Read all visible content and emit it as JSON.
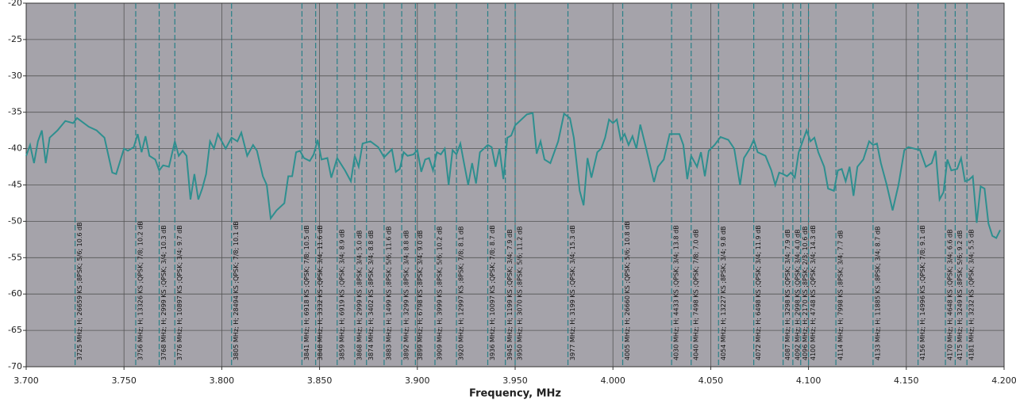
{
  "chart_data": {
    "type": "line",
    "x_label": "Frequency, MHz",
    "xlim": [
      3.7,
      4.2
    ],
    "xticks": [
      {
        "value": 3.7,
        "label": "3.700"
      },
      {
        "value": 3.75,
        "label": "3.750"
      },
      {
        "value": 3.8,
        "label": "3.800"
      },
      {
        "value": 3.85,
        "label": "3.850"
      },
      {
        "value": 3.9,
        "label": "3.900"
      },
      {
        "value": 3.95,
        "label": "3.950"
      },
      {
        "value": 4.0,
        "label": "4.000"
      },
      {
        "value": 4.05,
        "label": "4.050"
      },
      {
        "value": 4.1,
        "label": "4.100"
      },
      {
        "value": 4.15,
        "label": "4.150"
      },
      {
        "value": 4.2,
        "label": "4.200"
      }
    ],
    "ylim": [
      -70,
      -20
    ],
    "yticks": [
      -70,
      -65,
      -60,
      -55,
      -50,
      -45,
      -40,
      -35,
      -30,
      -25,
      -20
    ],
    "grid": true,
    "marker_color": "#2a8088",
    "x": [
      3.7,
      3.702,
      3.704,
      3.706,
      3.708,
      3.71,
      3.712,
      3.716,
      3.72,
      3.724,
      3.726,
      3.728,
      3.732,
      3.736,
      3.74,
      3.744,
      3.746,
      3.75,
      3.752,
      3.755,
      3.757,
      3.759,
      3.761,
      3.763,
      3.766,
      3.768,
      3.77,
      3.773,
      3.776,
      3.778,
      3.78,
      3.782,
      3.784,
      3.786,
      3.788,
      3.79,
      3.792,
      3.794,
      3.796,
      3.798,
      3.802,
      3.805,
      3.808,
      3.81,
      3.813,
      3.816,
      3.818,
      3.821,
      3.823,
      3.825,
      3.828,
      3.832,
      3.834,
      3.836,
      3.838,
      3.84,
      3.842,
      3.845,
      3.847,
      3.849,
      3.851,
      3.854,
      3.856,
      3.859,
      3.863,
      3.866,
      3.868,
      3.87,
      3.872,
      3.876,
      3.88,
      3.883,
      3.887,
      3.889,
      3.891,
      3.893,
      3.895,
      3.898,
      3.9,
      3.902,
      3.904,
      3.906,
      3.908,
      3.91,
      3.912,
      3.914,
      3.916,
      3.918,
      3.92,
      3.922,
      3.924,
      3.926,
      3.928,
      3.93,
      3.932,
      3.934,
      3.936,
      3.938,
      3.94,
      3.942,
      3.944,
      3.946,
      3.948,
      3.95,
      3.952,
      3.956,
      3.959,
      3.961,
      3.963,
      3.965,
      3.968,
      3.972,
      3.975,
      3.978,
      3.98,
      3.983,
      3.985,
      3.987,
      3.989,
      3.992,
      3.994,
      3.996,
      3.998,
      4.0,
      4.002,
      4.004,
      4.006,
      4.008,
      4.01,
      4.012,
      4.014,
      4.017,
      4.021,
      4.023,
      4.026,
      4.029,
      4.032,
      4.034,
      4.036,
      4.038,
      4.04,
      4.043,
      4.045,
      4.047,
      4.049,
      4.052,
      4.055,
      4.059,
      4.062,
      4.065,
      4.067,
      4.07,
      4.072,
      4.074,
      4.078,
      4.081,
      4.083,
      4.085,
      4.087,
      4.089,
      4.091,
      4.093,
      4.095,
      4.097,
      4.099,
      4.101,
      4.103,
      4.105,
      4.108,
      4.11,
      4.113,
      4.115,
      4.117,
      4.119,
      4.121,
      4.123,
      4.125,
      4.128,
      4.131,
      4.133,
      4.135,
      4.137,
      4.14,
      4.143,
      4.146,
      4.149,
      4.151,
      4.154,
      4.157,
      4.16,
      4.163,
      4.165,
      4.167,
      4.169,
      4.171,
      4.173,
      4.176,
      4.178,
      4.18,
      4.182,
      4.184,
      4.186,
      4.188,
      4.19,
      4.192,
      4.194,
      4.196,
      4.198
    ],
    "series": [
      {
        "color": "#2e8f8f",
        "values": [
          -41,
          -39.5,
          -42,
          -39,
          -37.5,
          -42,
          -38.5,
          -37.5,
          -36.2,
          -36.5,
          -35.8,
          -36.2,
          -37,
          -37.5,
          -38.5,
          -43.3,
          -43.5,
          -40,
          -40.3,
          -39.8,
          -38,
          -40.5,
          -38.3,
          -41,
          -41.5,
          -43,
          -42.3,
          -42.5,
          -39,
          -41,
          -40.3,
          -41,
          -47,
          -43.5,
          -47,
          -45.5,
          -43.5,
          -39,
          -40,
          -38,
          -40,
          -38.5,
          -39,
          -37.8,
          -41,
          -39.5,
          -40.3,
          -43.8,
          -45,
          -49.6,
          -48.5,
          -47.5,
          -43.8,
          -43.8,
          -40.5,
          -40.3,
          -41.3,
          -41.7,
          -40.8,
          -38.8,
          -41.5,
          -41.3,
          -44,
          -41.3,
          -43,
          -44.5,
          -41,
          -42.5,
          -39.3,
          -39,
          -39.8,
          -41.2,
          -40.1,
          -43.2,
          -42.8,
          -40.5,
          -41,
          -40.8,
          -40.2,
          -43.2,
          -41.5,
          -41.3,
          -43,
          -40.5,
          -40.8,
          -40,
          -45,
          -40.2,
          -40.8,
          -39.3,
          -42.2,
          -45,
          -42,
          -44.8,
          -40.5,
          -40,
          -39.5,
          -39.8,
          -42.5,
          -40,
          -44.2,
          -38.5,
          -38.2,
          -36.8,
          -36.3,
          -35.3,
          -35.1,
          -40.7,
          -39,
          -41.5,
          -42,
          -39,
          -35.2,
          -35.8,
          -38.5,
          -45.8,
          -47.8,
          -41.3,
          -44,
          -40.5,
          -40,
          -38.5,
          -36,
          -36.5,
          -36,
          -38.8,
          -38,
          -39.5,
          -38.3,
          -40,
          -36.7,
          -40,
          -44.6,
          -42.5,
          -41.5,
          -38,
          -38,
          -38,
          -39.5,
          -44.2,
          -41,
          -42.5,
          -40.5,
          -43.8,
          -40.3,
          -39.5,
          -38.4,
          -38.8,
          -40,
          -45,
          -41.3,
          -40,
          -38.8,
          -40.5,
          -41,
          -43,
          -45,
          -43.3,
          -43.5,
          -43.8,
          -43.3,
          -44,
          -40.5,
          -39,
          -37.5,
          -39,
          -38.5,
          -40.5,
          -42.5,
          -45.5,
          -45.8,
          -43,
          -42.8,
          -44.5,
          -42.5,
          -46.5,
          -42.5,
          -41.5,
          -39,
          -39.5,
          -39.3,
          -42,
          -45,
          -48.5,
          -45,
          -40.2,
          -39.8,
          -40,
          -40.2,
          -42.5,
          -42,
          -40.3,
          -47,
          -46,
          -41.5,
          -43,
          -42.8,
          -41.3,
          -44.5,
          -44.3,
          -43.8,
          -50.2,
          -45.2,
          -45.5,
          -50.3,
          -52,
          -52.3,
          -51.2
        ]
      }
    ],
    "markers": [
      {
        "x": 3.725,
        "label": "3725 MHz; H; 26659 KS ;8PSK; 5/6; 10.6 dB"
      },
      {
        "x": 3.756,
        "label": "3756 MHz; H; 13326 KS ;QPSK; 7/8; 10.2 dB"
      },
      {
        "x": 3.768,
        "label": "3768 MHz; H; 2999 KS ;QPSK; 3/4; 10.3 dB"
      },
      {
        "x": 3.776,
        "label": "3776 MHz; H; 10897 KS ;QPSK; 3/4; 9.7 dB"
      },
      {
        "x": 3.805,
        "label": "3805 MHz; H; 28494 KS ;QPSK; 7/8; 10.1 dB"
      },
      {
        "x": 3.841,
        "label": "3841 MHz; H; 6918 KS ;QPSK; 7/8; 10.5 dB"
      },
      {
        "x": 3.848,
        "label": "3848 MHz; H; 3332 KS ;QPSK; 3/4; 11.6 dB"
      },
      {
        "x": 3.859,
        "label": "3859 MHz; H; 6919 KS ;QPSK; 3/4; 8.9 dB"
      },
      {
        "x": 3.868,
        "label": "3868 MHz; H; 2999 KS ;8PSK; 3/4; 5.0 dB"
      },
      {
        "x": 3.874,
        "label": "3874 MHz; H; 3402 KS ;8PSK; 3/4; 8.8 dB"
      },
      {
        "x": 3.883,
        "label": "3883 MHz; H; 1499 KS ;8PSK; 5/6; 11.6 dB"
      },
      {
        "x": 3.892,
        "label": "3892 MHz; H; 3299 KS ;8PSK; 3/4; 8.8 dB"
      },
      {
        "x": 3.899,
        "label": "3899 MHz; H; 6798 KS ;8PSK; 3/4; 9.0 dB"
      },
      {
        "x": 3.909,
        "label": "3909 MHz; H; 3999 KS ;8PSK; 5/6; 10.2 dB"
      },
      {
        "x": 3.92,
        "label": "3920 MHz; H; 12997 KS ;8PSK; 7/8; 8.1 dB"
      },
      {
        "x": 3.936,
        "label": "3936 MHz; H; 10097 KS ;QPSK; 7/8; 8.7 dB"
      },
      {
        "x": 3.945,
        "label": "3945 MHz; H; 1199 KS ;QPSK; 3/4; 7.9 dB"
      },
      {
        "x": 3.95,
        "label": "3950 MHz; H; 3070 KS ;8PSK; 5/6; 11.2 dB"
      },
      {
        "x": 3.977,
        "label": "3977 MHz; H; 3199 KS ;QPSK; 3/4; 15.3 dB"
      },
      {
        "x": 4.005,
        "label": "4005 MHz; H; 26660 KS ;QPSK; 5/6; 10.8 dB"
      },
      {
        "x": 4.03,
        "label": "4030 MHz; H; 4433 KS ;QPSK; 3/4; 13.8 dB"
      },
      {
        "x": 4.04,
        "label": "4040 MHz; H; 7498 KS ;QPSK; 7/8; 7.0 dB"
      },
      {
        "x": 4.054,
        "label": "4054 MHz; H; 13227 KS ;8PSK; 3/4; 9.8 dB"
      },
      {
        "x": 4.072,
        "label": "4072 MHz; H; 6498 KS ;QPSK; 3/4; 11.9 dB"
      },
      {
        "x": 4.087,
        "label": "4087 MHz; H; 3298 KS ;QPSK; 3/4; 7.9 dB"
      },
      {
        "x": 4.092,
        "label": "4092 MHz; H; 2998 KS ;QPSK; 3/4; 4.0 dB"
      },
      {
        "x": 4.096,
        "label": "4096 MHz; H; 2170 KS ;8PSK; 2/3; 10.6 dB"
      },
      {
        "x": 4.1,
        "label": "4100 MHz; H; 4748 KS ;QPSK; 3/4; 14.3 dB"
      },
      {
        "x": 4.114,
        "label": "4114 MHz; H; 7998 KS ;8PSK; 3/4; 7.7 dB"
      },
      {
        "x": 4.133,
        "label": "4133 MHz; H; 11885 KS ;8PSK; 3/4; 8.7 dB"
      },
      {
        "x": 4.156,
        "label": "4156 MHz; H; 14996 KS ;QPSK; 7/8; 9.1 dB"
      },
      {
        "x": 4.17,
        "label": "4170 MHz; H; 4648 KS ;QPSK; 3/4; 6.6 dB"
      },
      {
        "x": 4.175,
        "label": "4175 MHz; H; 3249 KS ;8PSK; 5/6; 9.2 dB"
      },
      {
        "x": 4.181,
        "label": "4181 MHz; H; 3232 KS ;QPSK; 3/4; 5.5 dB"
      }
    ]
  }
}
